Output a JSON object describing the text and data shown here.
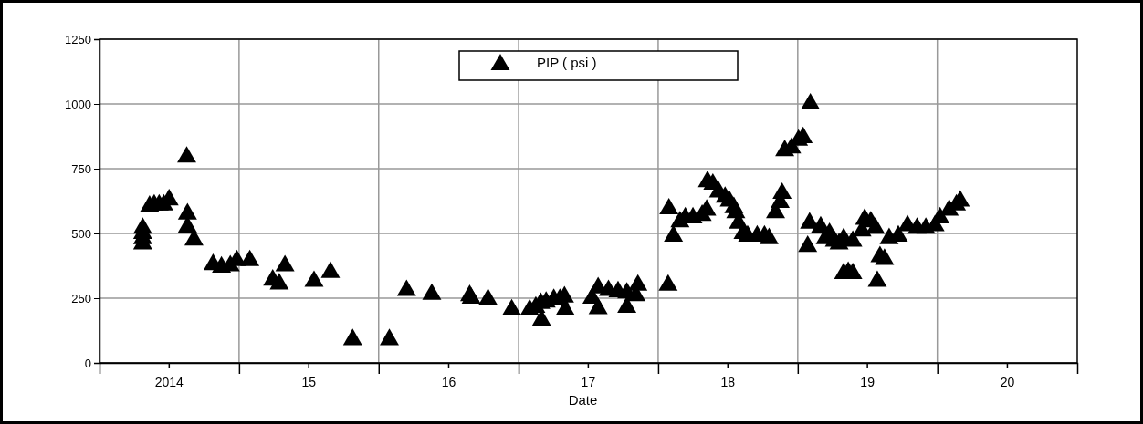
{
  "chart_data": {
    "type": "scatter",
    "xlabel": "Date",
    "marker": "triangle",
    "grid": true,
    "legend": "top",
    "xlim": [
      "2014-01-01",
      "2021-01-01"
    ],
    "ylim": [
      0,
      1250
    ],
    "xticks": [
      {
        "value": "2014-07-01",
        "label": "2014"
      },
      {
        "value": "2015-01-01",
        "label": null
      },
      {
        "value": "2015-07-01",
        "label": "15"
      },
      {
        "value": "2016-01-01",
        "label": null
      },
      {
        "value": "2016-07-01",
        "label": "16"
      },
      {
        "value": "2017-01-01",
        "label": null
      },
      {
        "value": "2017-07-01",
        "label": "17"
      },
      {
        "value": "2018-01-01",
        "label": null
      },
      {
        "value": "2018-07-01",
        "label": "18"
      },
      {
        "value": "2019-01-01",
        "label": null
      },
      {
        "value": "2019-07-01",
        "label": "19"
      },
      {
        "value": "2020-01-01",
        "label": null
      },
      {
        "value": "2020-07-01",
        "label": "20"
      }
    ],
    "yticks": [
      0,
      250,
      500,
      750,
      1000,
      1250
    ],
    "series": [
      {
        "name": "PIP ( psi )",
        "color": "#000000",
        "x": [
          "2014-04-24",
          "2014-04-24",
          "2014-04-24",
          "2014-04-24",
          "2014-05-12",
          "2014-05-24",
          "2014-06-06",
          "2014-06-18",
          "2014-07-02",
          "2014-08-17",
          "2014-08-19",
          "2014-08-19",
          "2014-09-05",
          "2014-10-25",
          "2014-11-16",
          "2014-12-09",
          "2014-12-26",
          "2015-01-29",
          "2015-03-30",
          "2015-04-16",
          "2015-05-01",
          "2015-07-16",
          "2015-08-28",
          "2015-10-25",
          "2016-01-29",
          "2016-03-14",
          "2016-05-19",
          "2016-08-26",
          "2016-08-30",
          "2016-10-13",
          "2016-12-14",
          "2017-01-30",
          "2017-02-15",
          "2017-02-28",
          "2017-03-02",
          "2017-03-14",
          "2017-04-03",
          "2017-04-19",
          "2017-05-01",
          "2017-05-03",
          "2017-07-12",
          "2017-07-28",
          "2017-07-28",
          "2017-08-24",
          "2017-09-18",
          "2017-10-11",
          "2017-10-11",
          "2017-11-04",
          "2017-11-09",
          "2018-01-27",
          "2018-01-29",
          "2018-02-10",
          "2018-02-27",
          "2018-03-13",
          "2018-04-02",
          "2018-04-26",
          "2018-05-08",
          "2018-05-10",
          "2018-05-24",
          "2018-06-08",
          "2018-06-25",
          "2018-07-06",
          "2018-07-18",
          "2018-07-23",
          "2018-07-30",
          "2018-08-11",
          "2018-08-23",
          "2018-09-17",
          "2018-10-06",
          "2018-10-18",
          "2018-11-04",
          "2018-11-16",
          "2018-11-21",
          "2018-11-28",
          "2018-12-16",
          "2019-01-03",
          "2019-01-15",
          "2019-01-27",
          "2019-02-01",
          "2019-02-03",
          "2019-03-02",
          "2019-03-14",
          "2019-03-25",
          "2019-04-07",
          "2019-04-19",
          "2019-05-01",
          "2019-05-13",
          "2019-05-25",
          "2019-05-01",
          "2019-05-25",
          "2019-06-18",
          "2019-06-25",
          "2019-07-11",
          "2019-07-23",
          "2019-07-28",
          "2019-08-04",
          "2019-08-16",
          "2019-08-28",
          "2019-09-21",
          "2019-10-15",
          "2019-11-09",
          "2019-12-02",
          "2019-12-26",
          "2020-01-08",
          "2020-02-01",
          "2020-02-20",
          "2020-03-01"
        ],
        "values": [
          460,
          480,
          500,
          520,
          605,
          610,
          610,
          610,
          630,
          795,
          575,
          525,
          475,
          380,
          370,
          375,
          395,
          395,
          320,
          305,
          375,
          315,
          350,
          90,
          90,
          280,
          265,
          260,
          250,
          245,
          205,
          205,
          215,
          230,
          165,
          235,
          245,
          245,
          255,
          205,
          250,
          210,
          290,
          280,
          275,
          215,
          270,
          260,
          300,
          300,
          595,
          490,
          545,
          560,
          560,
          570,
          590,
          700,
          690,
          660,
          640,
          625,
          600,
          580,
          540,
          500,
          490,
          490,
          490,
          480,
          580,
          620,
          655,
          820,
          830,
          860,
          870,
          450,
          540,
          1000,
          525,
          480,
          500,
          470,
          460,
          345,
          350,
          345,
          480,
          470,
          510,
          555,
          545,
          520,
          315,
          410,
          400,
          480,
          490,
          530,
          520,
          520,
          530,
          560,
          590,
          610,
          625
        ]
      }
    ]
  }
}
